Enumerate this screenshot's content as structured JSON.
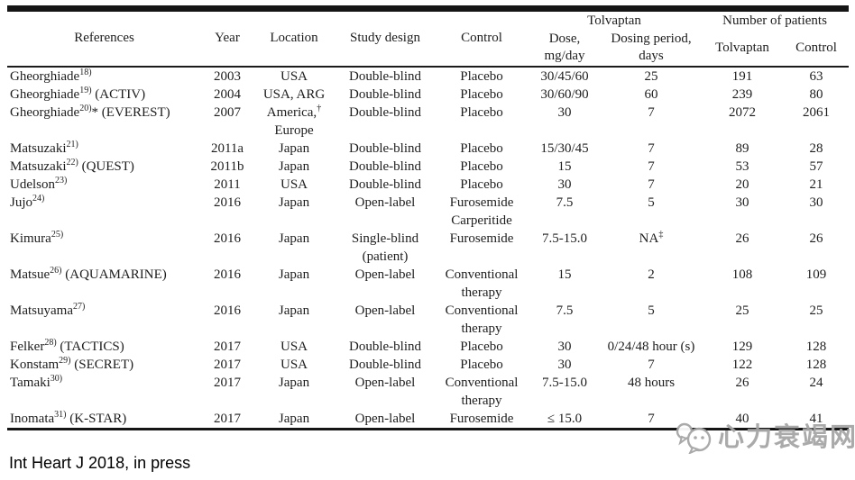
{
  "table": {
    "header": {
      "references": "References",
      "year": "Year",
      "location": "Location",
      "study_design": "Study design",
      "control": "Control",
      "tolvaptan_group": "Tolvaptan",
      "patients_group": "Number of patients",
      "dose": "Dose,\nmg/day",
      "dosing_period": "Dosing period,\ndays",
      "patients_tolvaptan": "Tolvaptan",
      "patients_control": "Control"
    },
    "rows": [
      [
        "Gheorghiade^{18)}",
        "2003",
        "USA",
        "Double-blind",
        "Placebo",
        "30/45/60",
        "25",
        "191",
        "63"
      ],
      [
        "Gheorghiade^{19)} (ACTIV)",
        "2004",
        "USA, ARG",
        "Double-blind",
        "Placebo",
        "30/60/90",
        "60",
        "239",
        "80"
      ],
      [
        "Gheorghiade^{20)}* (EVEREST)",
        "2007",
        "America,^{†}\nEurope",
        "Double-blind",
        "Placebo",
        "30",
        "7",
        "2072",
        "2061"
      ],
      [
        "Matsuzaki^{21)}",
        "2011a",
        "Japan",
        "Double-blind",
        "Placebo",
        "15/30/45",
        "7",
        "89",
        "28"
      ],
      [
        "Matsuzaki^{22)} (QUEST)",
        "2011b",
        "Japan",
        "Double-blind",
        "Placebo",
        "15",
        "7",
        "53",
        "57"
      ],
      [
        "Udelson^{23)}",
        "2011",
        "USA",
        "Double-blind",
        "Placebo",
        "30",
        "7",
        "20",
        "21"
      ],
      [
        "Jujo^{24)}",
        "2016",
        "Japan",
        "Open-label",
        "Furosemide\nCarperitide",
        "7.5",
        "5",
        "30",
        "30"
      ],
      [
        "Kimura^{25)}",
        "2016",
        "Japan",
        "Single-blind\n(patient)",
        "Furosemide",
        "7.5-15.0",
        "NA^{‡}",
        "26",
        "26"
      ],
      [
        "Matsue^{26)} (AQUAMARINE)",
        "2016",
        "Japan",
        "Open-label",
        "Conventional\ntherapy",
        "15",
        "2",
        "108",
        "109"
      ],
      [
        "Matsuyama^{27)}",
        "2016",
        "Japan",
        "Open-label",
        "Conventional\ntherapy",
        "7.5",
        "5",
        "25",
        "25"
      ],
      [
        "Felker^{28)} (TACTICS)",
        "2017",
        "USA",
        "Double-blind",
        "Placebo",
        "30",
        "0/24/48 hour (s)",
        "129",
        "128"
      ],
      [
        "Konstam^{29)} (SECRET)",
        "2017",
        "USA",
        "Double-blind",
        "Placebo",
        "30",
        "7",
        "122",
        "128"
      ],
      [
        "Tamaki^{30)}",
        "2017",
        "Japan",
        "Open-label",
        "Conventional\ntherapy",
        "7.5-15.0",
        "48 hours",
        "26",
        "24"
      ],
      [
        "Inomata^{31)} (K-STAR)",
        "2017",
        "Japan",
        "Open-label",
        "Furosemide",
        "≤ 15.0",
        "7",
        "40",
        "41"
      ]
    ]
  },
  "footer": {
    "citation": "Int Heart J 2018, in press"
  },
  "watermark": {
    "text": "心力衰竭网",
    "icon": "wechat-bubbles-icon",
    "color": "#a6a6a6"
  }
}
